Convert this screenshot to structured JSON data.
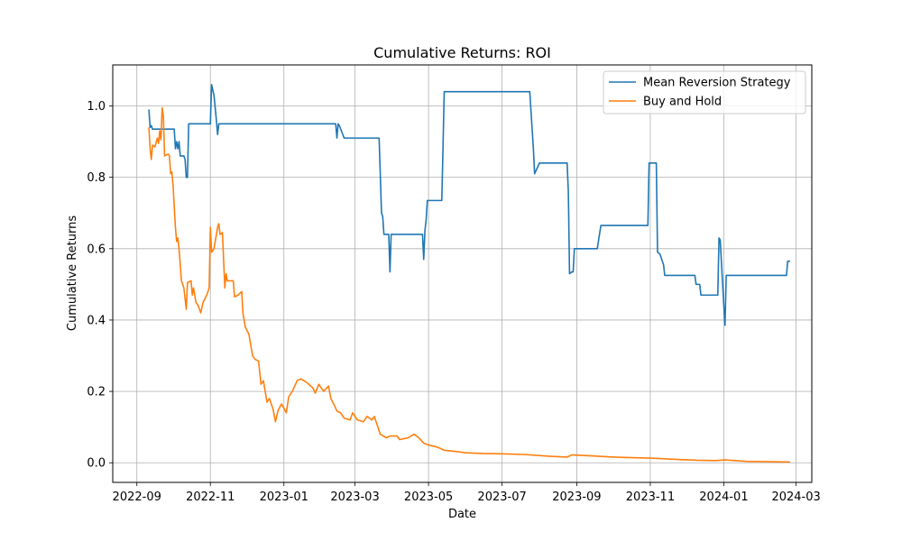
{
  "chart_data": {
    "type": "line",
    "title": "Cumulative Returns: ROI",
    "xlabel": "Date",
    "ylabel": "Cumulative Returns",
    "xlim": [
      "2022-08-12",
      "2024-03-14"
    ],
    "ylim": [
      -0.055,
      1.115
    ],
    "grid": true,
    "legend_position": "top-right",
    "x_ticks": [
      "2022-09",
      "2022-11",
      "2023-01",
      "2023-03",
      "2023-05",
      "2023-07",
      "2023-09",
      "2023-11",
      "2024-01",
      "2024-03"
    ],
    "y_ticks": [
      0.0,
      0.2,
      0.4,
      0.6,
      0.8,
      1.0
    ],
    "series": [
      {
        "name": "Mean Reversion Strategy",
        "color": "#1f77b4",
        "points": [
          [
            "2022-09-11",
            0.99
          ],
          [
            "2022-09-12",
            0.94
          ],
          [
            "2022-09-13",
            0.945
          ],
          [
            "2022-09-14",
            0.935
          ],
          [
            "2022-10-02",
            0.935
          ],
          [
            "2022-10-03",
            0.88
          ],
          [
            "2022-10-04",
            0.9
          ],
          [
            "2022-10-05",
            0.88
          ],
          [
            "2022-10-06",
            0.9
          ],
          [
            "2022-10-07",
            0.86
          ],
          [
            "2022-10-10",
            0.86
          ],
          [
            "2022-10-11",
            0.85
          ],
          [
            "2022-10-12",
            0.8
          ],
          [
            "2022-10-13",
            0.8
          ],
          [
            "2022-10-14",
            0.95
          ],
          [
            "2022-11-01",
            0.95
          ],
          [
            "2022-11-02",
            1.06
          ],
          [
            "2022-11-04",
            1.03
          ],
          [
            "2022-11-06",
            0.96
          ],
          [
            "2022-11-07",
            0.92
          ],
          [
            "2022-11-08",
            0.95
          ],
          [
            "2022-11-10",
            0.95
          ],
          [
            "2023-02-13",
            0.95
          ],
          [
            "2023-02-14",
            0.91
          ],
          [
            "2023-02-15",
            0.95
          ],
          [
            "2023-02-16",
            0.945
          ],
          [
            "2023-02-20",
            0.91
          ],
          [
            "2023-03-21",
            0.91
          ],
          [
            "2023-03-23",
            0.7
          ],
          [
            "2023-03-24",
            0.69
          ],
          [
            "2023-03-25",
            0.64
          ],
          [
            "2023-03-29",
            0.64
          ],
          [
            "2023-03-30",
            0.535
          ],
          [
            "2023-03-31",
            0.64
          ],
          [
            "2023-04-26",
            0.64
          ],
          [
            "2023-04-27",
            0.57
          ],
          [
            "2023-04-28",
            0.65
          ],
          [
            "2023-04-29",
            0.68
          ],
          [
            "2023-04-30",
            0.735
          ],
          [
            "2023-05-12",
            0.735
          ],
          [
            "2023-05-13",
            0.88
          ],
          [
            "2023-05-14",
            1.04
          ],
          [
            "2023-07-24",
            1.04
          ],
          [
            "2023-07-27",
            0.88
          ],
          [
            "2023-07-28",
            0.81
          ],
          [
            "2023-08-01",
            0.84
          ],
          [
            "2023-08-24",
            0.84
          ],
          [
            "2023-08-25",
            0.76
          ],
          [
            "2023-08-26",
            0.53
          ],
          [
            "2023-08-28",
            0.535
          ],
          [
            "2023-08-29",
            0.535
          ],
          [
            "2023-08-30",
            0.6
          ],
          [
            "2023-09-18",
            0.6
          ],
          [
            "2023-09-21",
            0.665
          ],
          [
            "2023-10-30",
            0.665
          ],
          [
            "2023-10-31",
            0.84
          ],
          [
            "2023-11-06",
            0.84
          ],
          [
            "2023-11-07",
            0.59
          ],
          [
            "2023-11-09",
            0.585
          ],
          [
            "2023-11-12",
            0.555
          ],
          [
            "2023-11-13",
            0.525
          ],
          [
            "2023-12-08",
            0.525
          ],
          [
            "2023-12-09",
            0.5
          ],
          [
            "2023-12-12",
            0.5
          ],
          [
            "2023-12-13",
            0.47
          ],
          [
            "2023-12-27",
            0.47
          ],
          [
            "2023-12-28",
            0.63
          ],
          [
            "2023-12-29",
            0.625
          ],
          [
            "2024-01-01",
            0.44
          ],
          [
            "2024-01-02",
            0.385
          ],
          [
            "2024-01-03",
            0.525
          ],
          [
            "2024-02-22",
            0.525
          ],
          [
            "2024-02-23",
            0.565
          ],
          [
            "2024-02-25",
            0.565
          ]
        ]
      },
      {
        "name": "Buy and Hold",
        "color": "#ff7f0e",
        "points": [
          [
            "2022-09-11",
            0.94
          ],
          [
            "2022-09-12",
            0.88
          ],
          [
            "2022-09-13",
            0.85
          ],
          [
            "2022-09-14",
            0.89
          ],
          [
            "2022-09-16",
            0.885
          ],
          [
            "2022-09-18",
            0.91
          ],
          [
            "2022-09-19",
            0.895
          ],
          [
            "2022-09-20",
            0.93
          ],
          [
            "2022-09-21",
            0.905
          ],
          [
            "2022-09-22",
            0.995
          ],
          [
            "2022-09-23",
            0.97
          ],
          [
            "2022-09-24",
            0.86
          ],
          [
            "2022-09-27",
            0.865
          ],
          [
            "2022-09-28",
            0.86
          ],
          [
            "2022-09-29",
            0.81
          ],
          [
            "2022-09-30",
            0.815
          ],
          [
            "2022-10-01",
            0.78
          ],
          [
            "2022-10-03",
            0.66
          ],
          [
            "2022-10-04",
            0.62
          ],
          [
            "2022-10-05",
            0.63
          ],
          [
            "2022-10-06",
            0.6
          ],
          [
            "2022-10-08",
            0.51
          ],
          [
            "2022-10-10",
            0.49
          ],
          [
            "2022-10-12",
            0.43
          ],
          [
            "2022-10-13",
            0.505
          ],
          [
            "2022-10-16",
            0.51
          ],
          [
            "2022-10-17",
            0.47
          ],
          [
            "2022-10-18",
            0.49
          ],
          [
            "2022-10-20",
            0.45
          ],
          [
            "2022-10-22",
            0.44
          ],
          [
            "2022-10-24",
            0.42
          ],
          [
            "2022-10-26",
            0.45
          ],
          [
            "2022-10-29",
            0.47
          ],
          [
            "2022-10-31",
            0.49
          ],
          [
            "2022-11-01",
            0.66
          ],
          [
            "2022-11-02",
            0.59
          ],
          [
            "2022-11-04",
            0.6
          ],
          [
            "2022-11-05",
            0.62
          ],
          [
            "2022-11-07",
            0.66
          ],
          [
            "2022-11-08",
            0.67
          ],
          [
            "2022-11-09",
            0.64
          ],
          [
            "2022-11-11",
            0.645
          ],
          [
            "2022-11-13",
            0.49
          ],
          [
            "2022-11-14",
            0.53
          ],
          [
            "2022-11-15",
            0.51
          ],
          [
            "2022-11-20",
            0.51
          ],
          [
            "2022-11-21",
            0.465
          ],
          [
            "2022-11-24",
            0.47
          ],
          [
            "2022-11-27",
            0.48
          ],
          [
            "2022-11-28",
            0.42
          ],
          [
            "2022-11-30",
            0.38
          ],
          [
            "2022-12-03",
            0.36
          ],
          [
            "2022-12-06",
            0.3
          ],
          [
            "2022-12-08",
            0.29
          ],
          [
            "2022-12-11",
            0.285
          ],
          [
            "2022-12-13",
            0.22
          ],
          [
            "2022-12-15",
            0.23
          ],
          [
            "2022-12-18",
            0.17
          ],
          [
            "2022-12-20",
            0.18
          ],
          [
            "2022-12-23",
            0.15
          ],
          [
            "2022-12-25",
            0.115
          ],
          [
            "2022-12-27",
            0.145
          ],
          [
            "2022-12-30",
            0.165
          ],
          [
            "2023-01-03",
            0.14
          ],
          [
            "2023-01-05",
            0.185
          ],
          [
            "2023-01-08",
            0.2
          ],
          [
            "2023-01-12",
            0.23
          ],
          [
            "2023-01-15",
            0.235
          ],
          [
            "2023-01-20",
            0.225
          ],
          [
            "2023-01-25",
            0.21
          ],
          [
            "2023-01-27",
            0.195
          ],
          [
            "2023-01-30",
            0.22
          ],
          [
            "2023-02-03",
            0.2
          ],
          [
            "2023-02-07",
            0.215
          ],
          [
            "2023-02-09",
            0.18
          ],
          [
            "2023-02-12",
            0.16
          ],
          [
            "2023-02-14",
            0.145
          ],
          [
            "2023-02-17",
            0.14
          ],
          [
            "2023-02-20",
            0.125
          ],
          [
            "2023-02-25",
            0.12
          ],
          [
            "2023-02-27",
            0.14
          ],
          [
            "2023-03-03",
            0.12
          ],
          [
            "2023-03-08",
            0.115
          ],
          [
            "2023-03-11",
            0.13
          ],
          [
            "2023-03-15",
            0.12
          ],
          [
            "2023-03-17",
            0.13
          ],
          [
            "2023-03-22",
            0.08
          ],
          [
            "2023-03-27",
            0.07
          ],
          [
            "2023-03-30",
            0.075
          ],
          [
            "2023-04-05",
            0.075
          ],
          [
            "2023-04-07",
            0.065
          ],
          [
            "2023-04-14",
            0.07
          ],
          [
            "2023-04-19",
            0.08
          ],
          [
            "2023-04-23",
            0.07
          ],
          [
            "2023-04-27",
            0.055
          ],
          [
            "2023-05-01",
            0.05
          ],
          [
            "2023-05-07",
            0.045
          ],
          [
            "2023-05-11",
            0.04
          ],
          [
            "2023-05-14",
            0.035
          ],
          [
            "2023-05-20",
            0.033
          ],
          [
            "2023-06-01",
            0.028
          ],
          [
            "2023-06-15",
            0.026
          ],
          [
            "2023-07-01",
            0.025
          ],
          [
            "2023-07-20",
            0.023
          ],
          [
            "2023-08-10",
            0.018
          ],
          [
            "2023-08-24",
            0.016
          ],
          [
            "2023-08-28",
            0.022
          ],
          [
            "2023-09-15",
            0.019
          ],
          [
            "2023-10-01",
            0.016
          ],
          [
            "2023-10-20",
            0.014
          ],
          [
            "2023-11-01",
            0.013
          ],
          [
            "2023-11-20",
            0.01
          ],
          [
            "2023-12-10",
            0.007
          ],
          [
            "2023-12-25",
            0.006
          ],
          [
            "2024-01-02",
            0.008
          ],
          [
            "2024-01-20",
            0.004
          ],
          [
            "2024-02-10",
            0.003
          ],
          [
            "2024-02-25",
            0.002
          ]
        ]
      }
    ]
  }
}
